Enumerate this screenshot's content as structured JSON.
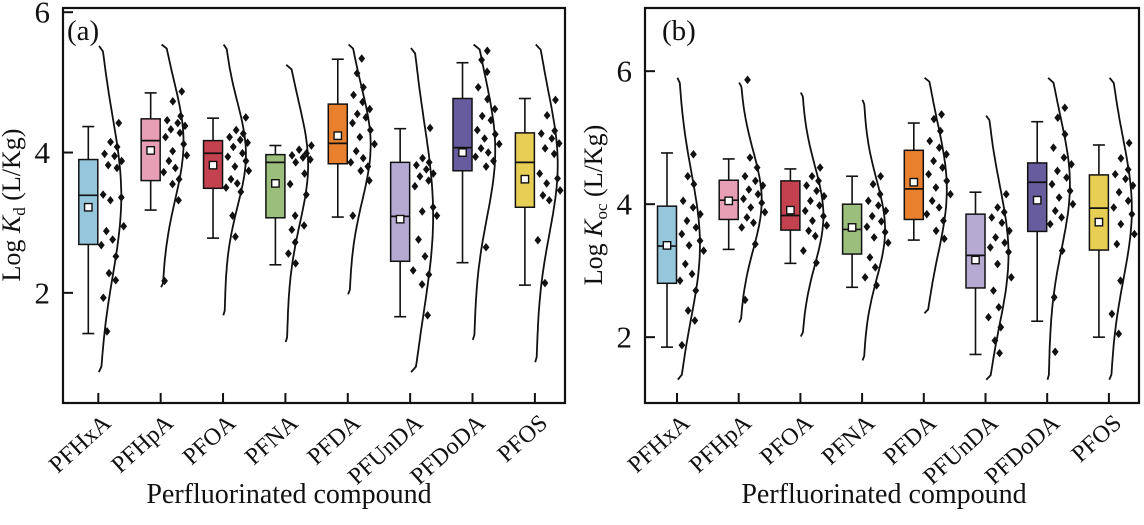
{
  "chart_data": {
    "type": "box",
    "description": "Box plots with jittered diamond data points and kernel-density outline curves of sorption coefficients for perfluorinated compounds",
    "xlabel": "Perfluorinated compound",
    "categories": [
      "PFHxA",
      "PFHpA",
      "PFOA",
      "PFNA",
      "PFDA",
      "PFUnDA",
      "PFDoDA",
      "PFOS"
    ],
    "legend": "none",
    "grid": false,
    "panels": [
      {
        "letter": "(a)",
        "ylabel": {
          "prefix": "Log ",
          "symbol": "K",
          "sub": "d",
          "suffix": " (L/Kg)"
        },
        "ylim": [
          0.43,
          6.06
        ],
        "yticks": [
          2,
          4,
          6
        ],
        "groups": [
          {
            "label": "PFHxA",
            "color": "#95C6DC",
            "whisker_low": 1.42,
            "q1": 2.69,
            "median": 3.39,
            "mean": 3.22,
            "q3": 3.9,
            "whisker_high": 4.37,
            "points": [
              4.42,
              4.15,
              4.08,
              3.98,
              3.95,
              3.88,
              3.82,
              3.78,
              3.4,
              3.36,
              3.32,
              2.95,
              2.88,
              2.76,
              2.68,
              2.52,
              2.28,
              2.18,
              1.93,
              1.45
            ]
          },
          {
            "label": "PFHpA",
            "color": "#E79FB6",
            "whisker_low": 3.18,
            "q1": 3.6,
            "median": 4.17,
            "mean": 4.03,
            "q3": 4.48,
            "whisker_high": 4.85,
            "points": [
              4.87,
              4.73,
              4.52,
              4.46,
              4.42,
              4.38,
              4.33,
              4.28,
              4.22,
              4.12,
              4.02,
              3.96,
              3.88,
              3.78,
              3.72,
              3.62,
              3.55,
              3.32,
              2.17
            ]
          },
          {
            "label": "PFOA",
            "color": "#C4414F",
            "whisker_low": 2.78,
            "q1": 3.49,
            "median": 3.99,
            "mean": 3.82,
            "q3": 4.17,
            "whisker_high": 4.49,
            "points": [
              4.5,
              4.32,
              4.27,
              4.22,
              4.18,
              4.14,
              4.08,
              3.99,
              3.94,
              3.88,
              3.8,
              3.74,
              3.62,
              3.56,
              3.5,
              3.44,
              3.1,
              2.8
            ]
          },
          {
            "label": "PFNA",
            "color": "#9CBE7D",
            "whisker_low": 2.4,
            "q1": 3.07,
            "median": 3.86,
            "mean": 3.56,
            "q3": 3.97,
            "whisker_high": 4.1,
            "points": [
              4.1,
              4.04,
              3.99,
              3.96,
              3.93,
              3.9,
              3.86,
              3.7,
              3.55,
              3.4,
              3.1,
              2.96,
              2.9,
              2.72,
              2.56,
              2.42
            ]
          },
          {
            "label": "PFDA",
            "color": "#E8802D",
            "whisker_low": 3.08,
            "q1": 3.84,
            "median": 4.13,
            "mean": 4.24,
            "q3": 4.69,
            "whisker_high": 5.33,
            "points": [
              5.34,
              5.13,
              4.93,
              4.82,
              4.72,
              4.62,
              4.55,
              4.5,
              4.42,
              4.32,
              4.22,
              4.12,
              4.02,
              3.92,
              3.86,
              3.8,
              3.74,
              3.6,
              3.1
            ]
          },
          {
            "label": "PFUnDA",
            "color": "#B5ABD2",
            "whisker_low": 1.66,
            "q1": 2.45,
            "median": 3.09,
            "mean": 3.05,
            "q3": 3.86,
            "whisker_high": 4.34,
            "points": [
              4.35,
              3.92,
              3.86,
              3.82,
              3.76,
              3.7,
              3.66,
              3.6,
              3.52,
              3.22,
              3.16,
              3.1,
              2.76,
              2.52,
              2.32,
              2.26,
              2.12,
              1.68
            ]
          },
          {
            "label": "PFDoDA",
            "color": "#675D9E",
            "whisker_low": 2.43,
            "q1": 3.74,
            "median": 4.07,
            "mean": 4.0,
            "q3": 4.77,
            "whisker_high": 5.28,
            "points": [
              5.45,
              5.32,
              5.15,
              4.93,
              4.76,
              4.62,
              4.52,
              4.46,
              4.32,
              4.26,
              4.2,
              4.12,
              4.06,
              4.0,
              3.94,
              3.88,
              3.8,
              2.65
            ]
          },
          {
            "label": "PFOS",
            "color": "#E7CE55",
            "whisker_low": 2.11,
            "q1": 3.22,
            "median": 3.86,
            "mean": 3.62,
            "q3": 4.28,
            "whisker_high": 4.77,
            "points": [
              4.75,
              4.53,
              4.31,
              4.27,
              4.2,
              4.13,
              4.06,
              3.98,
              3.7,
              3.63,
              3.56,
              3.46,
              3.39,
              3.32,
              2.75,
              2.14
            ]
          }
        ]
      },
      {
        "letter": "(b)",
        "ylabel": {
          "prefix": "Log ",
          "symbol": "K",
          "sub": "oc",
          "suffix": " (L/Kg)"
        },
        "ylim": [
          1.01,
          6.95
        ],
        "yticks": [
          2,
          4,
          6
        ],
        "groups": [
          {
            "label": "PFHxA",
            "color": "#95C6DC",
            "whisker_low": 1.85,
            "q1": 2.81,
            "median": 3.37,
            "mean": 3.38,
            "q3": 3.97,
            "whisker_high": 4.77,
            "points": [
              4.75,
              4.42,
              4.3,
              4.05,
              3.95,
              3.85,
              3.75,
              3.65,
              3.55,
              3.45,
              3.38,
              3.3,
              3.1,
              2.95,
              2.85,
              2.7,
              2.4,
              2.25,
              1.88
            ]
          },
          {
            "label": "PFHpA",
            "color": "#E79FB6",
            "whisker_low": 3.32,
            "q1": 3.77,
            "median": 4.06,
            "mean": 4.05,
            "q3": 4.36,
            "whisker_high": 4.68,
            "points": [
              5.87,
              4.7,
              4.55,
              4.42,
              4.35,
              4.28,
              4.22,
              4.15,
              4.08,
              4.02,
              3.95,
              3.88,
              3.8,
              3.72,
              3.65,
              3.4,
              2.56
            ]
          },
          {
            "label": "PFOA",
            "color": "#C4414F",
            "whisker_low": 3.11,
            "q1": 3.61,
            "median": 3.83,
            "mean": 3.91,
            "q3": 4.35,
            "whisker_high": 4.53,
            "points": [
              4.55,
              4.42,
              4.35,
              4.28,
              4.2,
              4.12,
              4.05,
              3.98,
              3.9,
              3.82,
              3.75,
              3.68,
              3.6,
              3.52,
              3.3,
              3.12
            ]
          },
          {
            "label": "PFNA",
            "color": "#9CBE7D",
            "whisker_low": 2.75,
            "q1": 3.25,
            "median": 3.62,
            "mean": 3.65,
            "q3": 4.0,
            "whisker_high": 4.42,
            "points": [
              4.42,
              4.3,
              4.15,
              4.05,
              3.98,
              3.9,
              3.82,
              3.74,
              3.66,
              3.58,
              3.5,
              3.42,
              3.2,
              3.05,
              2.9,
              2.78
            ]
          },
          {
            "label": "PFDA",
            "color": "#E8802D",
            "whisker_low": 3.46,
            "q1": 3.77,
            "median": 4.23,
            "mean": 4.33,
            "q3": 4.81,
            "whisker_high": 5.22,
            "points": [
              5.35,
              5.28,
              5.1,
              4.95,
              4.85,
              4.75,
              4.65,
              4.55,
              4.45,
              4.35,
              4.25,
              4.15,
              4.05,
              3.95,
              3.85,
              3.75,
              3.6,
              3.48
            ]
          },
          {
            "label": "PFUnDA",
            "color": "#B5ABD2",
            "whisker_low": 1.74,
            "q1": 2.74,
            "median": 3.23,
            "mean": 3.16,
            "q3": 3.85,
            "whisker_high": 4.18,
            "points": [
              4.15,
              3.95,
              3.88,
              3.8,
              3.72,
              3.6,
              3.5,
              3.42,
              3.35,
              3.28,
              3.1,
              2.9,
              2.7,
              2.45,
              2.3,
              2.15,
              1.95,
              1.76
            ]
          },
          {
            "label": "PFDoDA",
            "color": "#675D9E",
            "whisker_low": 2.24,
            "q1": 3.59,
            "median": 4.33,
            "mean": 4.06,
            "q3": 4.62,
            "whisker_high": 5.24,
            "points": [
              5.45,
              5.3,
              5.05,
              4.85,
              4.7,
              4.6,
              4.5,
              4.4,
              4.3,
              4.2,
              4.1,
              4.0,
              3.9,
              3.8,
              3.7,
              3.3,
              2.6,
              1.78
            ]
          },
          {
            "label": "PFOS",
            "color": "#E7CE55",
            "whisker_low": 2.0,
            "q1": 3.31,
            "median": 3.94,
            "mean": 3.73,
            "q3": 4.44,
            "whisker_high": 4.89,
            "points": [
              4.92,
              4.69,
              4.52,
              4.45,
              4.38,
              4.28,
              4.18,
              4.05,
              3.95,
              3.85,
              3.7,
              3.55,
              3.4,
              2.85,
              2.35,
              2.05
            ]
          }
        ]
      }
    ]
  }
}
